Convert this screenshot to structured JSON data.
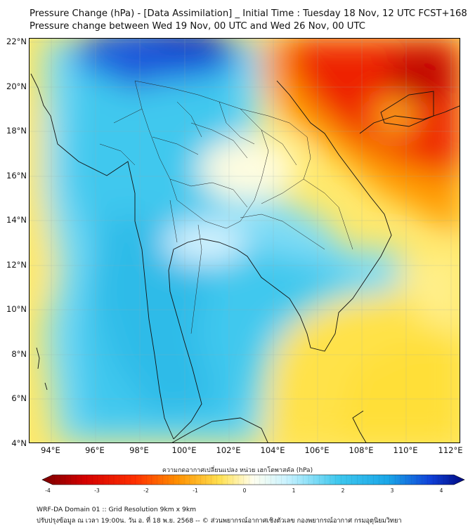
{
  "title": {
    "line1": "Pressure Change (hPa) - [Data Assimilation] _ Initial Time : Tuesday 18 Nov, 12 UTC FCST+168",
    "line2": "Pressure change between Wed 19 Nov, 00 UTC and Wed 26 Nov, 00 UTC"
  },
  "axes": {
    "lat_labels": [
      "22°N",
      "20°N",
      "18°N",
      "16°N",
      "14°N",
      "12°N",
      "10°N",
      "8°N",
      "6°N",
      "4°N"
    ],
    "lon_labels": [
      "94°E",
      "96°E",
      "98°E",
      "100°E",
      "102°E",
      "104°E",
      "106°E",
      "108°E",
      "110°E",
      "112°E"
    ]
  },
  "colorbar": {
    "title": "ความกดอากาศเปลี่ยนแปลง หน่วย เฮกโตพาสคัล (hPa)",
    "tick_labels": [
      "-4",
      "-3",
      "-2",
      "-1",
      "0",
      "1",
      "2",
      "3",
      "4"
    ],
    "range": [
      -4,
      4
    ]
  },
  "footer": {
    "line1": "WRF-DA Domain 01 :: Grid Resolution 9km x 9km",
    "line2": "ปรับปรุงข้อมูล ณ เวลา 19:00น. วัน อ. ที่ 18 พ.ย. 2568 -- © ส่วนพยากรณ์อากาศเชิงตัวเลข กองพยากรณ์อากาศ กรมอุตุนิยมวิทยา"
  },
  "colors": {
    "strong_rise": "#d40000",
    "rise": "#ff8a00",
    "slight_rise": "#ffe85a",
    "neutral": "#fffef0",
    "slight_fall": "#c8f2ff",
    "fall": "#35c6ee",
    "strong_fall": "#0a3ad8",
    "coastline": "#000000"
  }
}
